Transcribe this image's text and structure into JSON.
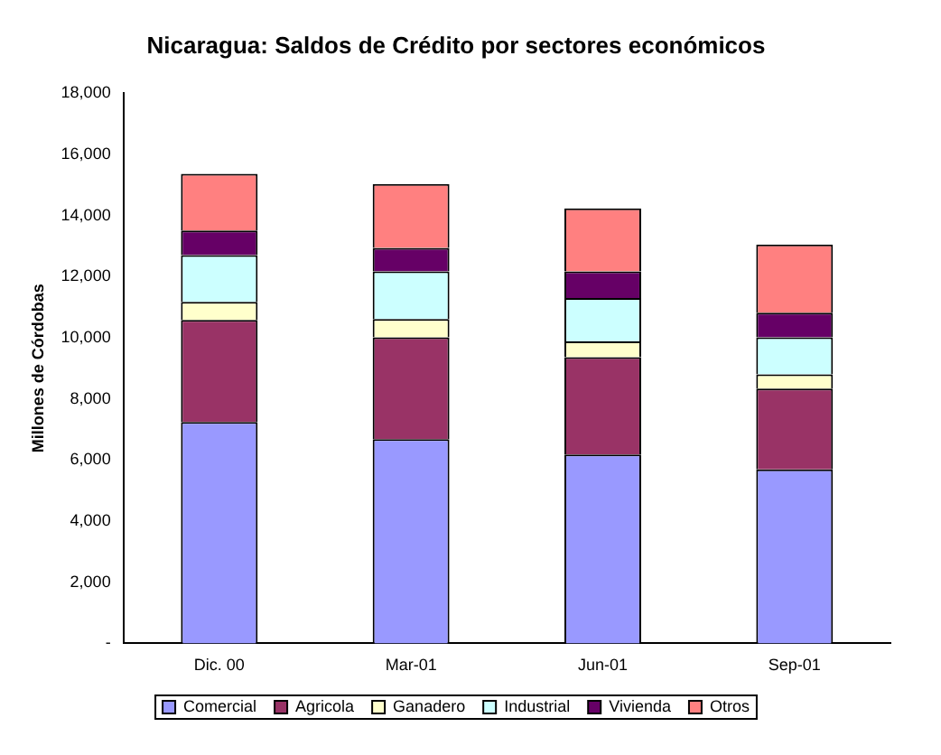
{
  "chart_data": {
    "type": "bar",
    "stacked": true,
    "title": "Nicaragua: Saldos de Crédito por sectores económicos",
    "ylabel": "Millones de Córdobas",
    "categories": [
      "Dic. 00",
      "Mar-01",
      "Jun-01",
      "Sep-01"
    ],
    "series": [
      {
        "name": "Comercial",
        "color": "#9999ff",
        "values": [
          7240,
          6680,
          6180,
          5690
        ]
      },
      {
        "name": "Agricola",
        "color": "#993366",
        "values": [
          3340,
          3330,
          3180,
          2650
        ]
      },
      {
        "name": "Ganadero",
        "color": "#ffffcc",
        "values": [
          590,
          600,
          520,
          460
        ]
      },
      {
        "name": "Industrial",
        "color": "#ccffff",
        "values": [
          1530,
          1560,
          1420,
          1210
        ]
      },
      {
        "name": "Vivienda",
        "color": "#660066",
        "values": [
          810,
          770,
          870,
          810
        ]
      },
      {
        "name": "Otros",
        "color": "#ff8080",
        "values": [
          1850,
          2090,
          2060,
          2230
        ]
      }
    ],
    "ylim": [
      0,
      18000
    ],
    "yticks": [
      {
        "value": 0,
        "label": "-"
      },
      {
        "value": 2000,
        "label": "2,000"
      },
      {
        "value": 4000,
        "label": "4,000"
      },
      {
        "value": 6000,
        "label": "6,000"
      },
      {
        "value": 8000,
        "label": "8,000"
      },
      {
        "value": 10000,
        "label": "10,000"
      },
      {
        "value": 12000,
        "label": "12,000"
      },
      {
        "value": 14000,
        "label": "14,000"
      },
      {
        "value": 16000,
        "label": "16,000"
      },
      {
        "value": 18000,
        "label": "18,000"
      }
    ],
    "grid": false,
    "legend": "bottom"
  }
}
